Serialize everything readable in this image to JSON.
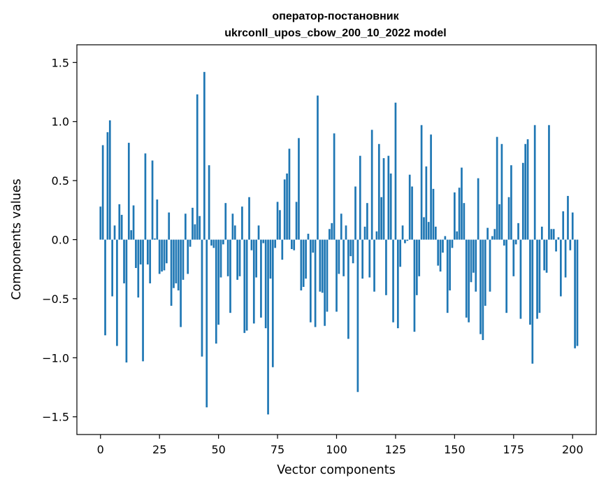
{
  "chart_data": {
    "type": "bar",
    "title": "оператор-постановник",
    "subtitle": "ukrconll_upos_cbow_200_10_2022 model",
    "xlabel": "Vector components",
    "ylabel": "Components values",
    "xlim": [
      -10,
      210
    ],
    "ylim": [
      -1.65,
      1.65
    ],
    "xticks": [
      0,
      25,
      50,
      75,
      100,
      125,
      150,
      175,
      200
    ],
    "yticks": [
      1.5,
      1.0,
      0.5,
      0.0,
      -0.5,
      -1.0,
      -1.5
    ],
    "ytick_labels": [
      "1.5",
      "1.0",
      "0.5",
      "0.0",
      "−0.5",
      "−1.0",
      "−1.5"
    ],
    "grid": false,
    "bar_color": "#1f77b4",
    "values": [
      0.28,
      0.8,
      -0.81,
      0.91,
      1.01,
      -0.48,
      0.12,
      -0.9,
      0.3,
      0.21,
      -0.37,
      -1.04,
      0.82,
      0.08,
      0.29,
      -0.24,
      -0.49,
      -0.21,
      -1.03,
      0.73,
      -0.21,
      -0.37,
      0.67,
      0.01,
      0.34,
      -0.29,
      -0.27,
      -0.26,
      -0.2,
      0.23,
      -0.56,
      -0.41,
      -0.37,
      -0.43,
      -0.74,
      -0.34,
      0.22,
      -0.29,
      -0.06,
      0.27,
      0.13,
      1.23,
      0.2,
      -0.99,
      1.42,
      -1.42,
      0.63,
      -0.05,
      -0.07,
      -0.88,
      -0.72,
      -0.32,
      -0.04,
      0.31,
      -0.31,
      -0.62,
      0.22,
      0.12,
      -0.34,
      -0.31,
      0.28,
      -0.79,
      -0.77,
      0.36,
      -0.09,
      -0.71,
      -0.32,
      0.12,
      -0.66,
      -0.03,
      -0.75,
      -1.48,
      -0.33,
      -1.08,
      -0.07,
      0.32,
      0.25,
      -0.17,
      0.51,
      0.56,
      0.77,
      -0.08,
      -0.09,
      0.32,
      0.86,
      -0.43,
      -0.4,
      -0.33,
      0.05,
      -0.7,
      -0.11,
      -0.74,
      1.22,
      -0.44,
      -0.45,
      -0.73,
      -0.61,
      0.09,
      0.14,
      0.9,
      -0.61,
      -0.29,
      0.22,
      -0.31,
      0.12,
      -0.84,
      -0.14,
      -0.2,
      0.45,
      -1.29,
      0.71,
      -0.33,
      0.11,
      0.31,
      -0.32,
      0.93,
      -0.44,
      0.07,
      0.81,
      0.36,
      0.69,
      -0.47,
      0.71,
      0.56,
      -0.7,
      1.16,
      -0.75,
      -0.23,
      0.12,
      -0.03,
      -0.01,
      0.55,
      0.45,
      -0.78,
      -0.47,
      -0.31,
      0.97,
      0.19,
      0.62,
      0.15,
      0.89,
      0.43,
      0.11,
      -0.22,
      -0.27,
      -0.11,
      0.03,
      -0.62,
      -0.43,
      -0.07,
      0.4,
      0.07,
      0.44,
      0.61,
      0.31,
      -0.66,
      -0.7,
      -0.36,
      -0.28,
      -0.44,
      0.52,
      -0.8,
      -0.85,
      -0.56,
      0.1,
      -0.44,
      0.03,
      0.09,
      0.87,
      0.3,
      0.81,
      -0.05,
      -0.62,
      0.36,
      0.63,
      -0.31,
      -0.04,
      0.14,
      -0.67,
      0.65,
      0.81,
      0.85,
      -0.72,
      -1.05,
      0.97,
      -0.67,
      -0.62,
      0.11,
      -0.26,
      -0.28,
      0.97,
      0.09,
      0.09,
      -0.1,
      0.02,
      -0.48,
      0.24,
      -0.32,
      0.37,
      -0.09,
      0.23,
      -0.92,
      -0.9
    ]
  }
}
